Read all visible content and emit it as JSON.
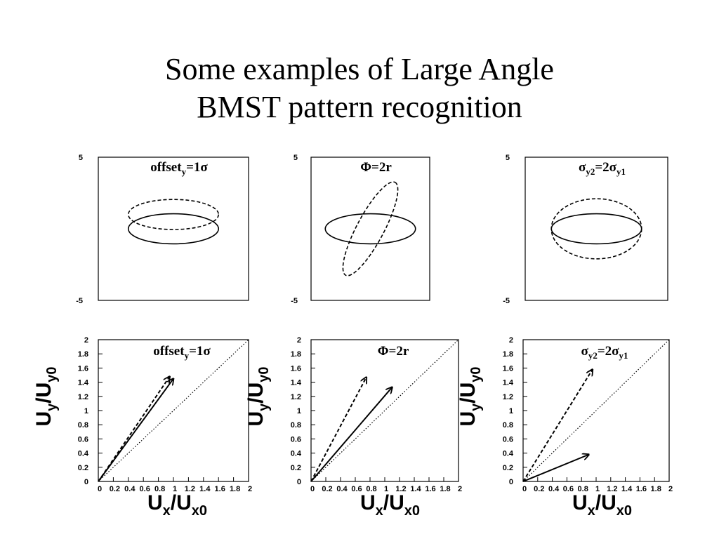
{
  "slide": {
    "title_line1": "Some examples of Large Angle",
    "title_line2": "BMST pattern recognition"
  },
  "chart_data": [
    {
      "type": "line",
      "panel": "top-left",
      "title": "offset_y=1σ",
      "title_parts": [
        "offset",
        "y",
        "=1σ"
      ],
      "ylim": [
        -5,
        5
      ],
      "yticks": [
        "5",
        "-5"
      ],
      "series": [
        {
          "style": "solid",
          "shape": "ellipse",
          "center": [
            0,
            0
          ],
          "rx": 3,
          "ry": 1
        },
        {
          "style": "dashed",
          "shape": "ellipse",
          "center": [
            0,
            1
          ],
          "rx": 3,
          "ry": 1
        }
      ]
    },
    {
      "type": "line",
      "panel": "top-middle",
      "title": "Φ=2r",
      "title_parts": [
        "Φ=2r",
        "",
        ""
      ],
      "ylim": [
        -5,
        5
      ],
      "yticks": [
        "5",
        "-5"
      ],
      "series": [
        {
          "style": "solid",
          "shape": "ellipse",
          "center": [
            0,
            0
          ],
          "rx": 3,
          "ry": 1
        },
        {
          "style": "dashed",
          "shape": "ellipse",
          "center": [
            0,
            0
          ],
          "rx": 3.5,
          "ry": 0.9,
          "rotation_deg": -62
        }
      ]
    },
    {
      "type": "line",
      "panel": "top-right",
      "title": "σ_y2=2σ_y1",
      "title_parts": [
        "σ",
        "y2",
        "=2σ",
        "y1"
      ],
      "ylim": [
        -5,
        5
      ],
      "yticks": [
        "5",
        "-5"
      ],
      "series": [
        {
          "style": "solid",
          "shape": "ellipse",
          "center": [
            0,
            0
          ],
          "rx": 3,
          "ry": 1
        },
        {
          "style": "dashed",
          "shape": "ellipse",
          "center": [
            0,
            0
          ],
          "rx": 3,
          "ry": 2
        }
      ]
    },
    {
      "type": "line",
      "panel": "bottom-left",
      "title": "offset_y=1σ",
      "title_parts": [
        "offset",
        "y",
        "=1σ"
      ],
      "xlabel": "U_x/U_x0",
      "ylabel": "U_y/U_y0",
      "xlim": [
        0,
        2
      ],
      "ylim": [
        0,
        2
      ],
      "xtick_labels": [
        "0",
        "0.2",
        "0.4",
        "0.6",
        "0.8",
        "1",
        "1.2",
        "1.4",
        "1.6",
        "1.8",
        "2"
      ],
      "ytick_labels": [
        "0",
        "0.2",
        "0.4",
        "0.6",
        "0.8",
        "1",
        "1.2",
        "1.4",
        "1.6",
        "1.8",
        "2"
      ],
      "series": [
        {
          "style": "solid-arrow",
          "x": [
            0,
            1.0
          ],
          "y": [
            0,
            1.45
          ]
        },
        {
          "style": "dashed-arrow",
          "x": [
            0,
            0.95
          ],
          "y": [
            0,
            1.48
          ]
        },
        {
          "style": "dotted-diagonal",
          "x": [
            0,
            2
          ],
          "y": [
            0,
            2
          ]
        }
      ]
    },
    {
      "type": "line",
      "panel": "bottom-middle",
      "title": "Φ=2r",
      "title_parts": [
        "Φ=2r",
        "",
        ""
      ],
      "xlabel": "U_x/U_x0",
      "ylabel": "U_y/U_y0",
      "xlim": [
        0,
        2
      ],
      "ylim": [
        0,
        2
      ],
      "xtick_labels": [
        "0",
        "0.2",
        "0.4",
        "0.6",
        "0.8",
        "1",
        "1.2",
        "1.4",
        "1.6",
        "1.8",
        "2"
      ],
      "ytick_labels": [
        "0",
        "0.2",
        "0.4",
        "0.6",
        "0.8",
        "1",
        "1.2",
        "1.4",
        "1.6",
        "1.8",
        "2"
      ],
      "series": [
        {
          "style": "solid-arrow",
          "x": [
            0,
            1.1
          ],
          "y": [
            0,
            1.33
          ]
        },
        {
          "style": "dashed-arrow",
          "x": [
            0,
            0.75
          ],
          "y": [
            0,
            1.47
          ]
        },
        {
          "style": "dotted-diagonal",
          "x": [
            0,
            2
          ],
          "y": [
            0,
            2
          ]
        }
      ]
    },
    {
      "type": "line",
      "panel": "bottom-right",
      "title": "σ_y2=2σ_y1",
      "title_parts": [
        "σ",
        "y2",
        "=2σ",
        "y1"
      ],
      "xlabel": "U_x/U_x0",
      "ylabel": "U_y/U_y0",
      "xlim": [
        0,
        2
      ],
      "ylim": [
        0,
        2
      ],
      "xtick_labels": [
        "0",
        "0.2",
        "0.4",
        "0.6",
        "0.8",
        "1",
        "1.2",
        "1.4",
        "1.6",
        "1.8",
        "2"
      ],
      "ytick_labels": [
        "0",
        "0.2",
        "0.4",
        "0.6",
        "0.8",
        "1",
        "1.2",
        "1.4",
        "1.6",
        "1.8",
        "2"
      ],
      "series": [
        {
          "style": "solid-arrow",
          "x": [
            0,
            0.9
          ],
          "y": [
            0,
            0.38
          ]
        },
        {
          "style": "dashed-arrow",
          "x": [
            0,
            0.95
          ],
          "y": [
            0,
            1.58
          ]
        },
        {
          "style": "dotted-diagonal",
          "x": [
            0,
            2
          ],
          "y": [
            0,
            2
          ]
        }
      ]
    }
  ]
}
